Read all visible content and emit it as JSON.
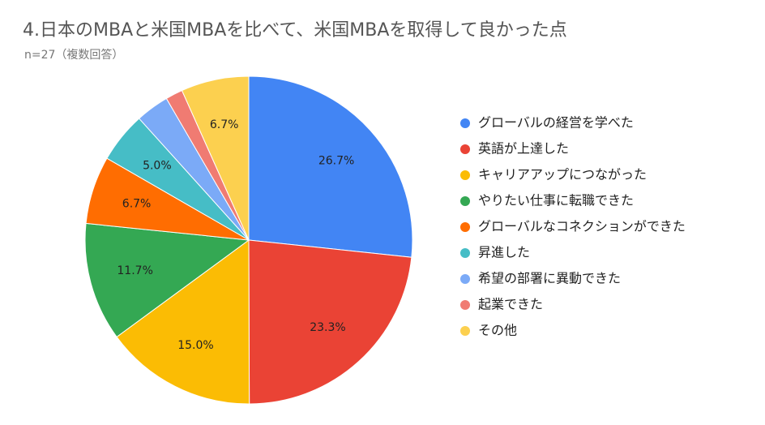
{
  "chart_data": {
    "type": "pie",
    "title": "4.日本のMBAと米国MBAを比べて、米国MBAを取得して良かった点",
    "subtitle": "n=27（複数回答）",
    "categories": [
      "グローバルの経営を学べた",
      "英語が上達した",
      "キャリアアップにつながった",
      "やりたい仕事に転職できた",
      "グローバルなコネクションができた",
      "昇進した",
      "希望の部署に異動できた",
      "起業できた",
      "その他"
    ],
    "values": [
      26.7,
      23.3,
      15.0,
      11.7,
      6.7,
      5.0,
      3.3,
      1.7,
      6.7
    ],
    "value_labels": [
      "26.7%",
      "23.3%",
      "15.0%",
      "11.7%",
      "6.7%",
      "5.0%",
      null,
      null,
      "6.7%"
    ],
    "colors": [
      "#4285f4",
      "#ea4335",
      "#fbbc04",
      "#34a853",
      "#ff6d01",
      "#46bdc6",
      "#7baaf7",
      "#f07b72",
      "#fcd04f"
    ],
    "legend": "right"
  }
}
